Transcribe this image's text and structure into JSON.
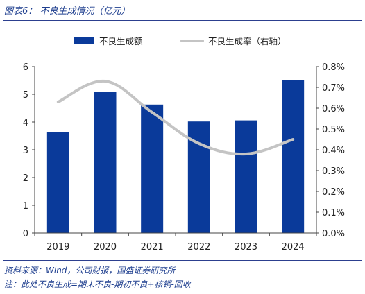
{
  "header": {
    "figure_title": "图表6：  不良生成情况（亿元）"
  },
  "footer": {
    "source": "资料来源：Wind，公司财报，国盛证券研究所",
    "note": "注：此处不良生成=期末不良-期初不良+核销-回收"
  },
  "colors": {
    "bar": "#0a3a9a",
    "line": "#c4c4c4",
    "text": "#222222",
    "accent": "#1f3f8f"
  },
  "chart_data": {
    "type": "bar",
    "categories": [
      "2019",
      "2020",
      "2021",
      "2022",
      "2023",
      "2024"
    ],
    "series": [
      {
        "name": "不良生成额",
        "type": "bar",
        "axis": "left",
        "values": [
          3.65,
          5.08,
          4.63,
          4.02,
          4.06,
          5.5
        ]
      },
      {
        "name": "不良生成率（右轴）",
        "type": "line",
        "axis": "right",
        "values": [
          0.63,
          0.73,
          0.58,
          0.43,
          0.38,
          0.45
        ]
      }
    ],
    "y_left": {
      "min": 0,
      "max": 6,
      "ticks": [
        "0",
        "1",
        "2",
        "3",
        "4",
        "5",
        "6"
      ]
    },
    "y_right": {
      "min": 0,
      "max": 0.8,
      "ticks": [
        "0.0%",
        "0.1%",
        "0.2%",
        "0.3%",
        "0.4%",
        "0.5%",
        "0.6%",
        "0.7%",
        "0.8%"
      ]
    },
    "legend_position": "top",
    "grid": false
  }
}
